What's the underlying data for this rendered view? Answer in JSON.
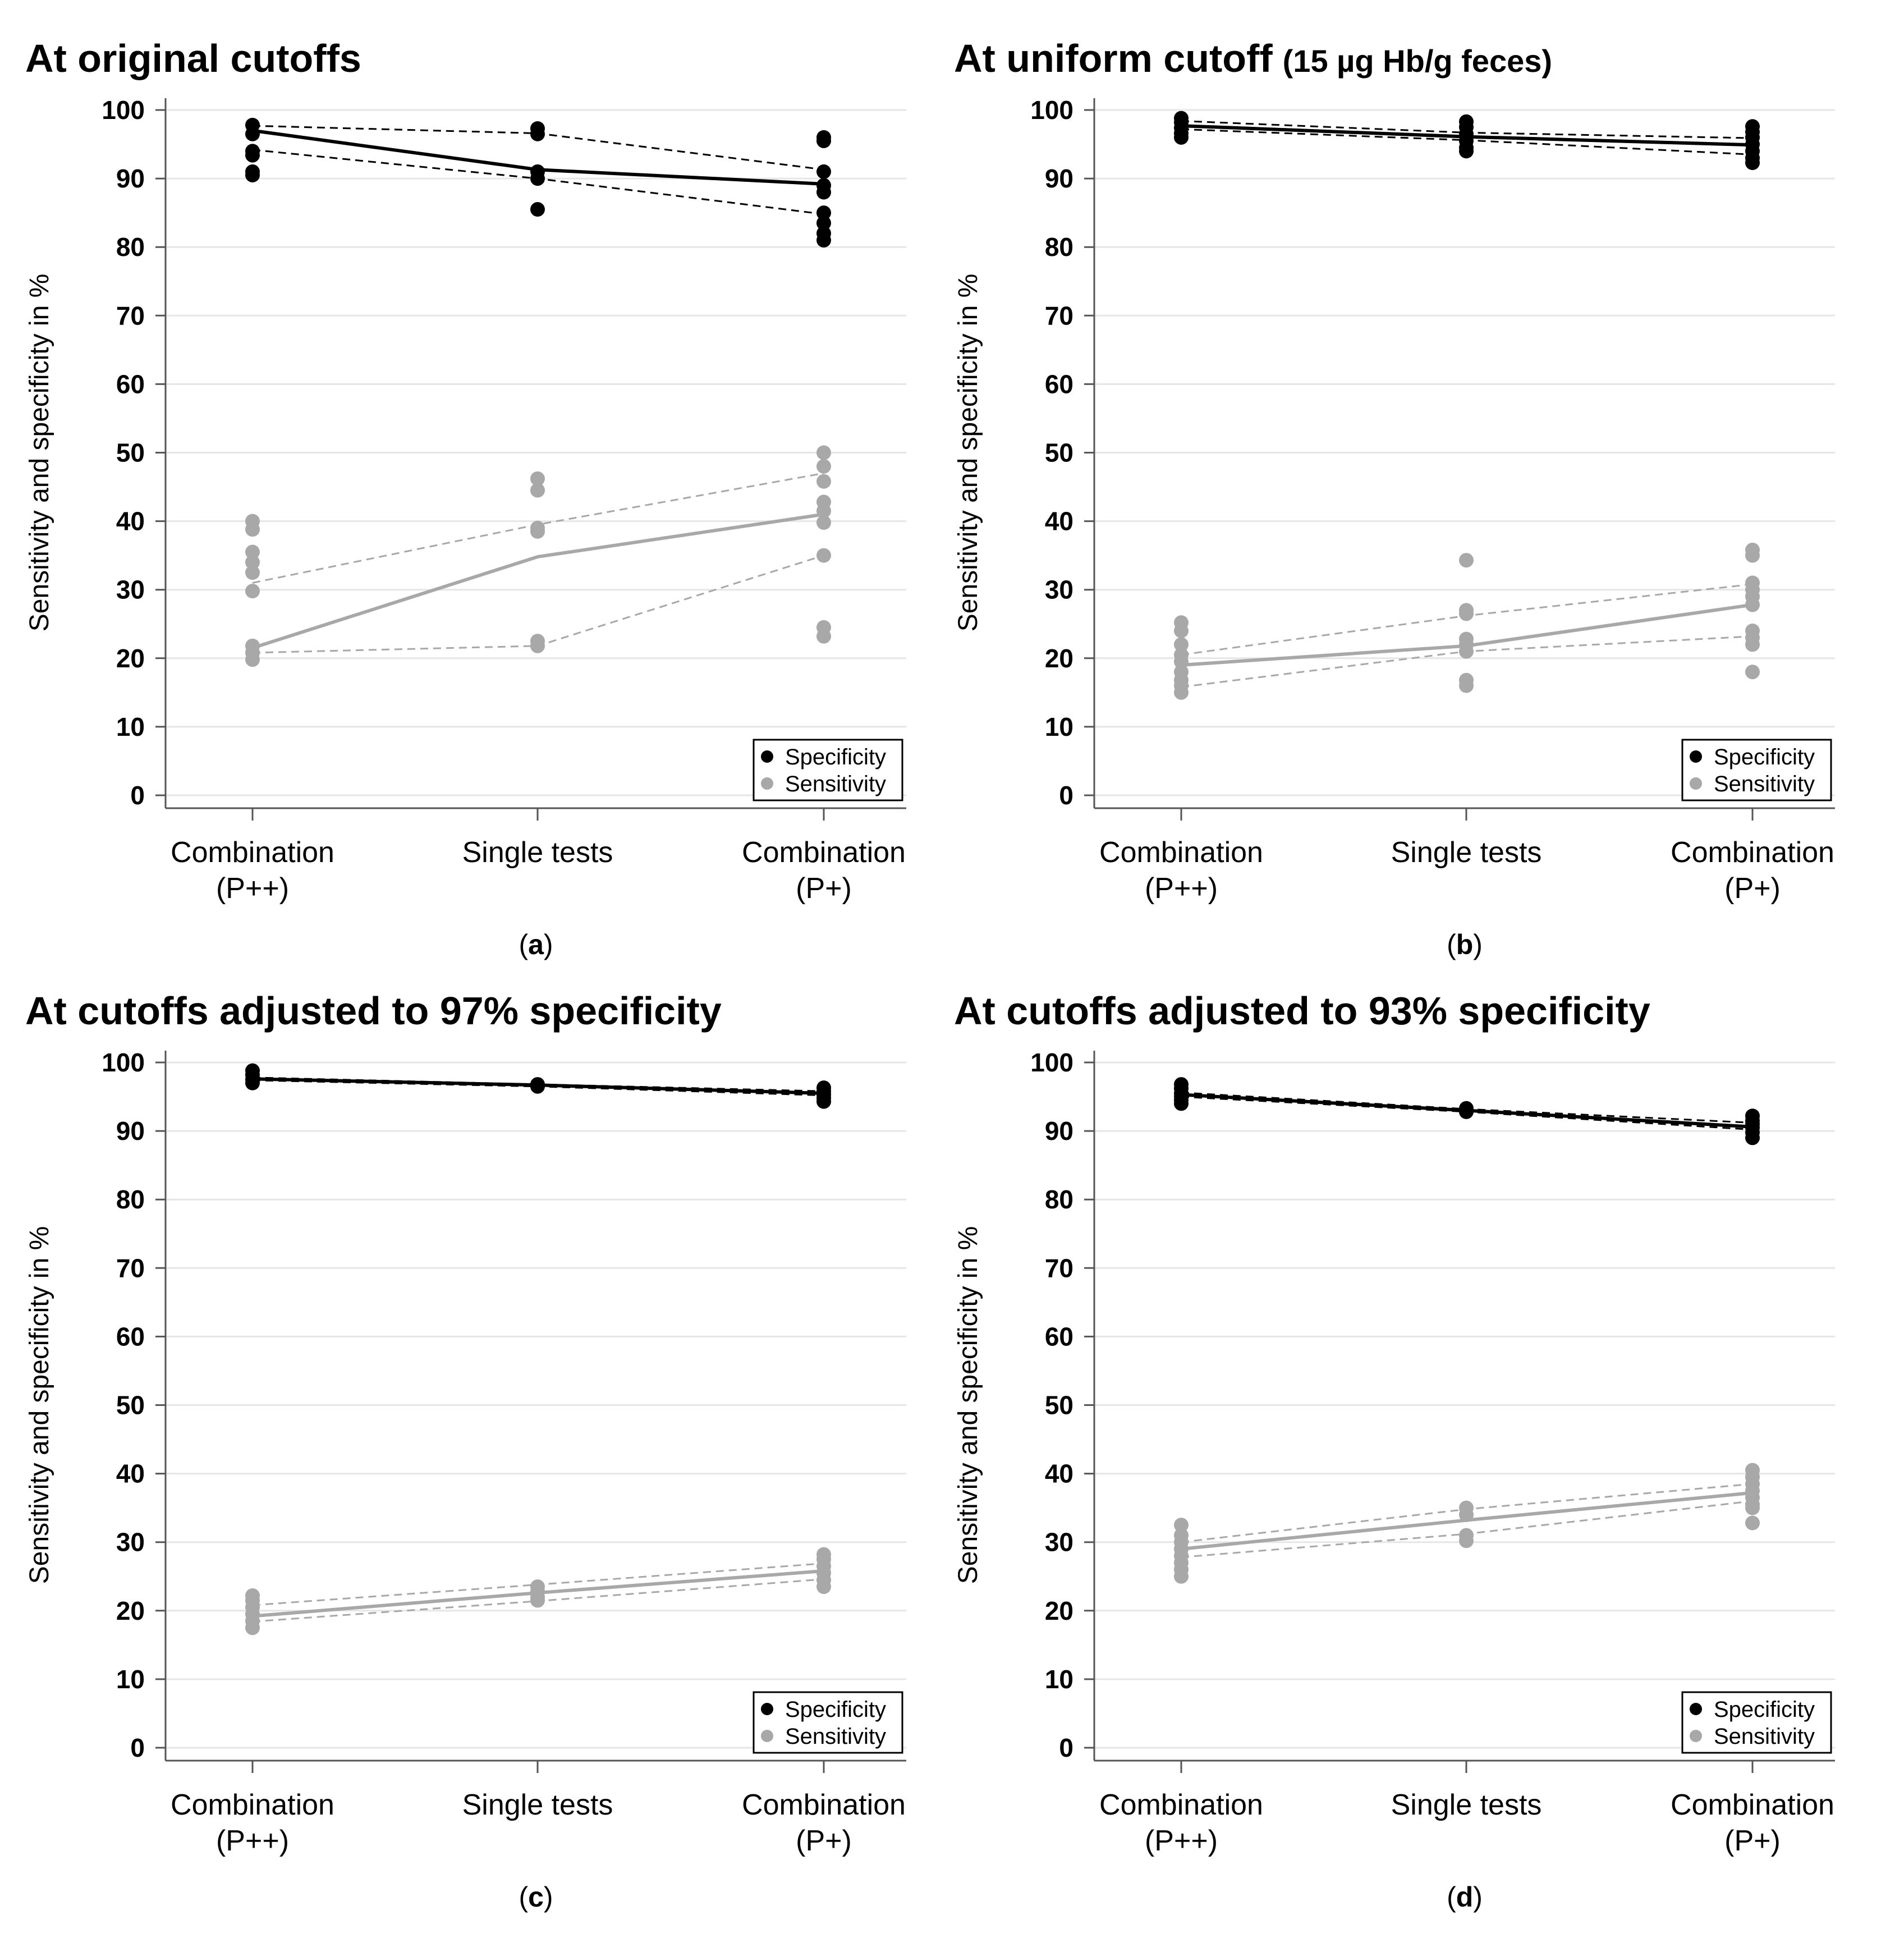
{
  "colors": {
    "specificity": "#000000",
    "sensitivity": "#a8a8a8",
    "grid": "#e6e6e6",
    "axis": "#555555"
  },
  "chart_data": [
    {
      "type": "scatter",
      "panel": "a",
      "title": "At original cutoffs",
      "title_suffix": "",
      "caption": "a",
      "ylabel": "Sensitivity and specificity in %",
      "ylim": [
        0,
        100
      ],
      "yticks": [
        "0",
        "10",
        "20",
        "30",
        "40",
        "50",
        "60",
        "70",
        "80",
        "90",
        "100"
      ],
      "categories": [
        [
          "Combination",
          "(P++)"
        ],
        [
          "Single tests",
          ""
        ],
        [
          "Combination",
          "(P+)"
        ]
      ],
      "legend": [
        "Specificity",
        "Sensitivity"
      ],
      "series": [
        {
          "name": "Specificity",
          "points": [
            [
              97.8,
              96.5,
              94.0,
              93.4,
              91.0,
              90.5
            ],
            [
              97.3,
              96.5,
              91.0,
              90.0,
              85.5
            ],
            [
              96.0,
              95.5,
              91.0,
              89.0,
              88.0,
              85.0,
              83.5,
              82.0,
              81.0
            ]
          ],
          "mean": [
            97.0,
            91.3,
            89.2
          ],
          "ci_high": [
            97.7,
            96.6,
            91.3
          ],
          "ci_low": [
            94.2,
            90.0,
            84.8
          ]
        },
        {
          "name": "Sensitivity",
          "points": [
            [
              40.0,
              38.8,
              35.5,
              34.0,
              32.5,
              29.8,
              21.8,
              20.8,
              19.8
            ],
            [
              46.2,
              44.5,
              39.0,
              38.5,
              22.5,
              21.8
            ],
            [
              50.0,
              48.0,
              45.8,
              42.8,
              41.5,
              39.8,
              35.0,
              24.5,
              23.2
            ]
          ],
          "mean": [
            21.5,
            34.8,
            41.0
          ],
          "ci_high": [
            31.0,
            39.5,
            47.0
          ],
          "ci_low": [
            20.8,
            21.8,
            35.0
          ]
        }
      ]
    },
    {
      "type": "scatter",
      "panel": "b",
      "title": "At uniform cutoff",
      "title_suffix": "(15 µg Hb/g feces)",
      "caption": "b",
      "ylabel": "Sensitivity and specificity in %",
      "ylim": [
        0,
        100
      ],
      "yticks": [
        "0",
        "10",
        "20",
        "30",
        "40",
        "50",
        "60",
        "70",
        "80",
        "90",
        "100"
      ],
      "categories": [
        [
          "Combination",
          "(P++)"
        ],
        [
          "Single tests",
          ""
        ],
        [
          "Combination",
          "(P+)"
        ]
      ],
      "legend": [
        "Specificity",
        "Sensitivity"
      ],
      "series": [
        {
          "name": "Specificity",
          "points": [
            [
              98.8,
              98.2,
              97.4,
              96.6,
              96.0
            ],
            [
              98.3,
              97.5,
              96.5,
              95.5,
              94.5,
              94.0
            ],
            [
              97.6,
              96.8,
              96.0,
              95.0,
              94.0,
              93.0,
              92.3
            ]
          ],
          "mean": [
            97.7,
            96.1,
            94.9
          ],
          "ci_high": [
            98.4,
            96.7,
            95.9
          ],
          "ci_low": [
            97.2,
            95.6,
            93.5
          ]
        },
        {
          "name": "Sensitivity",
          "points": [
            [
              25.2,
              24.0,
              22.0,
              20.5,
              19.5,
              18.0,
              16.8,
              16.0,
              15.0
            ],
            [
              34.3,
              27.0,
              26.5,
              22.8,
              22.0,
              21.0,
              16.8,
              16.0
            ],
            [
              35.8,
              35.0,
              31.0,
              30.0,
              29.0,
              27.8,
              24.0,
              23.0,
              22.0,
              18.0
            ]
          ],
          "mean": [
            19.0,
            21.8,
            27.8
          ],
          "ci_high": [
            20.5,
            26.2,
            30.8
          ],
          "ci_low": [
            15.8,
            21.0,
            23.2
          ]
        }
      ]
    },
    {
      "type": "scatter",
      "panel": "c",
      "title": "At cutoffs adjusted to 97% specificity",
      "title_suffix": "",
      "caption": "c",
      "ylabel": "Sensitivity and specificity in %",
      "ylim": [
        0,
        100
      ],
      "yticks": [
        "0",
        "10",
        "20",
        "30",
        "40",
        "50",
        "60",
        "70",
        "80",
        "90",
        "100"
      ],
      "categories": [
        [
          "Combination",
          "(P++)"
        ],
        [
          "Single tests",
          ""
        ],
        [
          "Combination",
          "(P+)"
        ]
      ],
      "legend": [
        "Specificity",
        "Sensitivity"
      ],
      "series": [
        {
          "name": "Specificity",
          "points": [
            [
              98.8,
              98.2,
              97.5,
              97.0
            ],
            [
              96.8,
              96.5
            ],
            [
              96.3,
              95.8,
              95.3,
              94.8,
              94.3
            ]
          ],
          "mean": [
            97.6,
            96.7,
            95.5
          ],
          "ci_high": [
            97.8,
            96.8,
            95.8
          ],
          "ci_low": [
            97.4,
            96.5,
            95.2
          ]
        },
        {
          "name": "Sensitivity",
          "points": [
            [
              22.2,
              21.5,
              20.5,
              19.5,
              18.5,
              17.5
            ],
            [
              23.5,
              22.8,
              22.0,
              21.5
            ],
            [
              28.2,
              27.5,
              26.5,
              25.5,
              24.5,
              23.5
            ]
          ],
          "mean": [
            19.2,
            22.6,
            25.8
          ],
          "ci_high": [
            20.8,
            23.8,
            26.9
          ],
          "ci_low": [
            18.4,
            21.4,
            24.6
          ]
        }
      ]
    },
    {
      "type": "scatter",
      "panel": "d",
      "title": "At cutoffs adjusted to 93% specificity",
      "title_suffix": "",
      "caption": "d",
      "ylabel": "Sensitivity and specificity in %",
      "ylim": [
        0,
        100
      ],
      "yticks": [
        "0",
        "10",
        "20",
        "30",
        "40",
        "50",
        "60",
        "70",
        "80",
        "90",
        "100"
      ],
      "categories": [
        [
          "Combination",
          "(P++)"
        ],
        [
          "Single tests",
          ""
        ],
        [
          "Combination",
          "(P+)"
        ]
      ],
      "legend": [
        "Specificity",
        "Sensitivity"
      ],
      "series": [
        {
          "name": "Specificity",
          "points": [
            [
              96.8,
              96.2,
              95.5,
              95.0,
              94.5,
              94.0
            ],
            [
              93.3,
              92.8
            ],
            [
              92.2,
              91.5,
              91.0,
              90.5,
              89.8,
              89.0
            ]
          ],
          "mean": [
            95.3,
            93.0,
            90.6
          ],
          "ci_high": [
            95.6,
            93.2,
            91.2
          ],
          "ci_low": [
            95.0,
            92.8,
            90.2
          ]
        },
        {
          "name": "Sensitivity",
          "points": [
            [
              32.5,
              31.0,
              30.0,
              29.0,
              28.0,
              27.0,
              26.0,
              25.0
            ],
            [
              35.0,
              34.0,
              31.0,
              30.2
            ],
            [
              40.5,
              39.5,
              38.5,
              37.5,
              36.5,
              35.5,
              35.0,
              32.8
            ]
          ],
          "mean": [
            29.0,
            33.2,
            37.2
          ],
          "ci_high": [
            30.0,
            34.8,
            38.5
          ],
          "ci_low": [
            27.8,
            31.2,
            36.0
          ]
        }
      ]
    }
  ]
}
